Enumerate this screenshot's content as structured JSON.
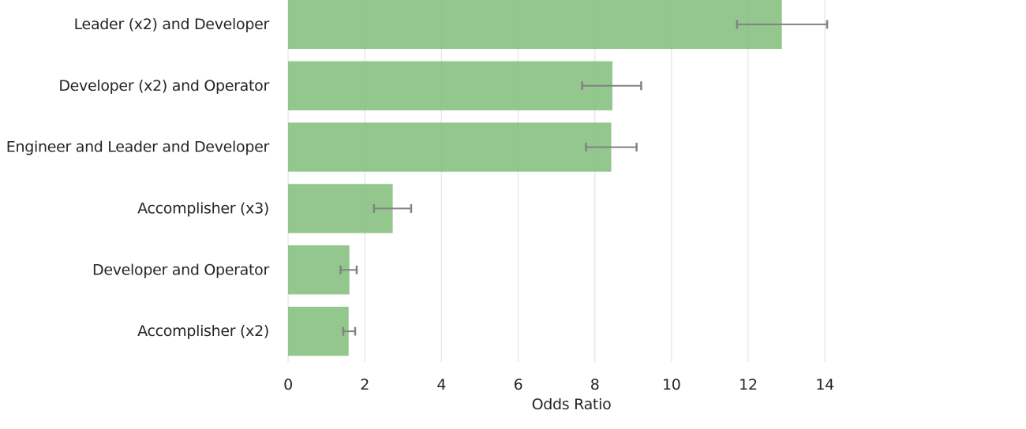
{
  "chart_data": {
    "type": "bar",
    "orientation": "horizontal",
    "title": "",
    "xlabel": "Odds Ratio",
    "ylabel": "",
    "categories": [
      "Leader (x2) and Developer",
      "Developer (x2) and Operator",
      "Engineer and Leader and Developer",
      "Accomplisher (x3)",
      "Developer and Operator",
      "Accomplisher (x2)"
    ],
    "values": [
      12.88,
      8.46,
      8.43,
      2.73,
      1.6,
      1.58
    ],
    "error_low": [
      11.71,
      7.67,
      7.77,
      2.24,
      1.37,
      1.44
    ],
    "error_high": [
      14.06,
      9.21,
      9.09,
      3.21,
      1.79,
      1.75
    ],
    "xticks": [
      "0",
      "2",
      "4",
      "6",
      "8",
      "10",
      "12",
      "14"
    ],
    "xtick_values": [
      0,
      2,
      4,
      6,
      8,
      10,
      12,
      14
    ],
    "xlim": [
      0,
      14.78
    ],
    "grid": true,
    "legend": false,
    "colors": {
      "bar_fill": "#80bd7a",
      "bar_opacity": 0.85,
      "error_bar": "#828282",
      "gridline": "#e6e9f1",
      "text": "#262626",
      "background": "#ffffff"
    }
  }
}
